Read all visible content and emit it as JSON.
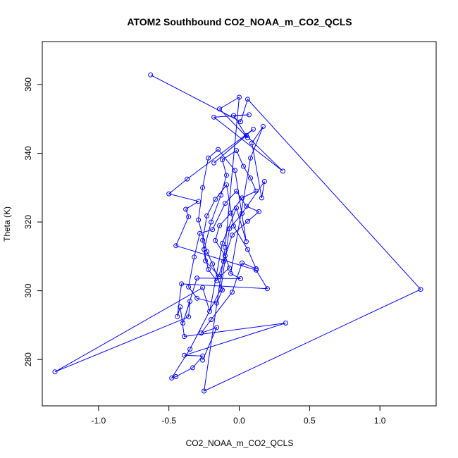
{
  "chart_data": {
    "type": "line",
    "title": "ATOM2 Southbound CO2_NOAA_m_CO2_QCLS",
    "xlabel": "CO2_NOAA_m_CO2_QCLS",
    "ylabel": "Theta (K)",
    "xlim": [
      -1.4,
      1.4
    ],
    "ylim": [
      266.5,
      372.5
    ],
    "xticks": [
      -1.0,
      -0.5,
      0.0,
      0.5,
      1.0
    ],
    "xtick_labels": [
      "-1.0",
      "-0.5",
      "0.0",
      "0.5",
      "1.0"
    ],
    "yticks": [
      280,
      300,
      320,
      340,
      360
    ],
    "yticks_labels": [
      "280",
      "300",
      "320",
      "340",
      "360"
    ],
    "grid": false,
    "series": [
      {
        "name": "CO2_NOAA_m_CO2_QCLS",
        "color": "#0000ff",
        "marker": "open-circle",
        "points": [
          [
            -0.63,
            362.8
          ],
          [
            0.01,
            349.2
          ],
          [
            0.06,
            355.7
          ],
          [
            1.29,
            300.4
          ],
          [
            -0.25,
            270.8
          ],
          [
            -0.1,
            312.6
          ],
          [
            0.0,
            356.3
          ],
          [
            -0.14,
            352.9
          ],
          [
            0.06,
            344.5
          ],
          [
            -0.04,
            351.0
          ],
          [
            0.07,
            351.2
          ],
          [
            -0.18,
            350.5
          ],
          [
            0.31,
            334.8
          ],
          [
            0.05,
            345.2
          ],
          [
            -0.18,
            337.2
          ],
          [
            0.1,
            347.0
          ],
          [
            -0.37,
            332.5
          ],
          [
            -0.5,
            328.2
          ],
          [
            -0.29,
            326.0
          ],
          [
            -0.38,
            323.7
          ],
          [
            -0.36,
            321.5
          ],
          [
            -0.45,
            313.1
          ],
          [
            0.12,
            306.0
          ],
          [
            0.2,
            300.6
          ],
          [
            -0.41,
            302.0
          ],
          [
            -0.44,
            292.5
          ],
          [
            -0.42,
            295.3
          ],
          [
            -0.39,
            286.7
          ],
          [
            0.33,
            290.6
          ],
          [
            -0.39,
            281.2
          ],
          [
            -0.26,
            281.0
          ],
          [
            -0.33,
            277.6
          ],
          [
            -0.45,
            275.0
          ],
          [
            -0.48,
            274.6
          ],
          [
            -0.35,
            283.0
          ],
          [
            -0.13,
            300.5
          ],
          [
            -0.07,
            318.0
          ],
          [
            0.02,
            322.5
          ],
          [
            0.18,
            331.8
          ],
          [
            0.16,
            327.0
          ],
          [
            0.09,
            343.0
          ],
          [
            0.17,
            347.8
          ],
          [
            0.08,
            338.6
          ],
          [
            -0.06,
            305.0
          ],
          [
            0.01,
            303.5
          ],
          [
            -0.3,
            303.7
          ],
          [
            -0.4,
            290.6
          ],
          [
            -0.35,
            296.9
          ],
          [
            -0.36,
            292.4
          ],
          [
            -1.31,
            276.4
          ],
          [
            -0.26,
            300.9
          ],
          [
            -0.21,
            294.0
          ],
          [
            -0.12,
            313.8
          ],
          [
            -0.02,
            324.1
          ],
          [
            0.05,
            314.3
          ],
          [
            -0.03,
            335.0
          ],
          [
            -0.15,
            341.1
          ],
          [
            -0.22,
            338.6
          ],
          [
            -0.26,
            330.0
          ],
          [
            -0.29,
            320.6
          ],
          [
            -0.23,
            311.4
          ],
          [
            -0.19,
            307.8
          ],
          [
            -0.12,
            300.2
          ],
          [
            -0.16,
            296.4
          ],
          [
            -0.3,
            297.8
          ],
          [
            -0.36,
            301.1
          ],
          [
            -0.32,
            309.8
          ],
          [
            -0.28,
            316.7
          ],
          [
            -0.19,
            317.8
          ],
          [
            -0.1,
            325.4
          ],
          [
            -0.02,
            329.0
          ],
          [
            0.05,
            324.6
          ],
          [
            0.14,
            323.0
          ],
          [
            0.06,
            320.2
          ],
          [
            -0.05,
            316.2
          ],
          [
            -0.11,
            308.5
          ],
          [
            -0.16,
            302.9
          ],
          [
            -0.22,
            306.2
          ],
          [
            -0.25,
            312.0
          ],
          [
            -0.2,
            320.0
          ],
          [
            -0.13,
            327.8
          ],
          [
            -0.09,
            333.6
          ],
          [
            -0.12,
            338.1
          ],
          [
            -0.02,
            340.8
          ],
          [
            0.03,
            336.2
          ],
          [
            0.08,
            332.8
          ],
          [
            0.12,
            329.0
          ],
          [
            0.02,
            327.0
          ],
          [
            -0.06,
            322.6
          ],
          [
            -0.14,
            318.9
          ],
          [
            -0.17,
            314.6
          ],
          [
            -0.1,
            310.2
          ],
          [
            -0.07,
            306.6
          ],
          [
            -0.14,
            304.1
          ],
          [
            -0.24,
            308.7
          ],
          [
            -0.26,
            314.7
          ],
          [
            -0.23,
            321.8
          ],
          [
            -0.17,
            326.6
          ],
          [
            -0.09,
            330.8
          ],
          [
            -0.04,
            318.8
          ],
          [
            0.06,
            312.0
          ],
          [
            0.12,
            306.4
          ],
          [
            0.02,
            308.1
          ],
          [
            -0.05,
            299.6
          ],
          [
            -0.2,
            291.6
          ],
          [
            -0.27,
            287.7
          ],
          [
            -0.16,
            289.3
          ],
          [
            -0.26,
            279.8
          ]
        ]
      }
    ]
  }
}
